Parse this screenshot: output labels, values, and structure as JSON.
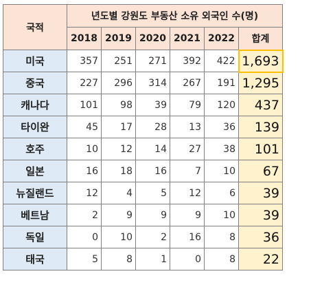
{
  "table": {
    "country_header": "국적",
    "title": "년도별 강원도 부동산 소유 외국인 수(명)",
    "years": [
      "2018",
      "2019",
      "2020",
      "2021",
      "2022"
    ],
    "total_header": "합계",
    "rows": [
      {
        "country": "미국",
        "values": [
          "357",
          "251",
          "271",
          "392",
          "422"
        ],
        "total": "1,693"
      },
      {
        "country": "중국",
        "values": [
          "227",
          "296",
          "314",
          "267",
          "191"
        ],
        "total": "1,295"
      },
      {
        "country": "캐나다",
        "values": [
          "101",
          "98",
          "39",
          "79",
          "120"
        ],
        "total": "437"
      },
      {
        "country": "타이완",
        "values": [
          "45",
          "17",
          "28",
          "13",
          "36"
        ],
        "total": "139"
      },
      {
        "country": "호주",
        "values": [
          "10",
          "12",
          "14",
          "27",
          "38"
        ],
        "total": "101"
      },
      {
        "country": "일본",
        "values": [
          "16",
          "18",
          "16",
          "7",
          "10"
        ],
        "total": "67"
      },
      {
        "country": "뉴질랜드",
        "values": [
          "12",
          "4",
          "5",
          "12",
          "6"
        ],
        "total": "39"
      },
      {
        "country": "베트남",
        "values": [
          "2",
          "9",
          "9",
          "9",
          "10"
        ],
        "total": "39"
      },
      {
        "country": "독일",
        "values": [
          "0",
          "10",
          "2",
          "16",
          "8"
        ],
        "total": "36"
      },
      {
        "country": "태국",
        "values": [
          "5",
          "8",
          "1",
          "0",
          "8"
        ],
        "total": "22"
      }
    ]
  }
}
